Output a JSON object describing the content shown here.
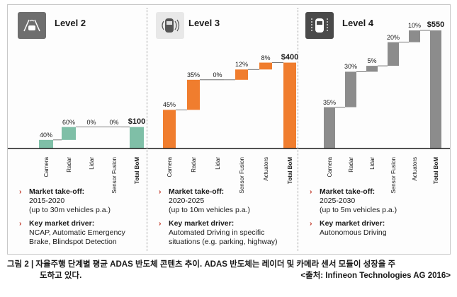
{
  "panels": [
    {
      "title": "Level 2",
      "icon": "car-lane-sensor-icon",
      "icon_bg": "#6e6e6e",
      "color": "#7fbfa7",
      "takeoff_heading": "Market take-off:",
      "takeoff_lines": [
        "2015-2020",
        "(up to 30m vehicles p.a.)"
      ],
      "driver_heading": "Key market driver:",
      "driver_lines": [
        "NCAP, Automatic Emergency",
        "Brake, Blindspot Detection"
      ]
    },
    {
      "title": "Level 3",
      "icon": "car-radar-icon",
      "icon_bg": "#e8e8e8",
      "color": "#f07d2e",
      "takeoff_heading": "Market take-off:",
      "takeoff_lines": [
        "2020-2025",
        "(up to 10m vehicles p.a.)"
      ],
      "driver_heading": "Key market driver:",
      "driver_lines": [
        "Automated Driving in specific",
        "situations (e.g. parking, highway)"
      ]
    },
    {
      "title": "Level 4",
      "icon": "car-autonomous-icon",
      "icon_bg": "#4a4a4a",
      "color": "#8c8c8c",
      "takeoff_heading": "Market take-off:",
      "takeoff_lines": [
        "2025-2030",
        "(up to 5m vehicles p.a.)"
      ],
      "driver_heading": "Key market driver:",
      "driver_lines": [
        "Autonomous Driving"
      ]
    }
  ],
  "chart_data": [
    {
      "type": "bar",
      "subtype": "waterfall",
      "title": "Level 2",
      "categories": [
        "Camera",
        "Radar",
        "Lidar",
        "Sensor Fusion",
        "Total BoM"
      ],
      "values": [
        40,
        60,
        0,
        0,
        100
      ],
      "labels": [
        "40%",
        "60%",
        "0%",
        "0%",
        "$100"
      ],
      "unit": "$",
      "ylim": [
        0,
        550
      ]
    },
    {
      "type": "bar",
      "subtype": "waterfall",
      "title": "Level 3",
      "categories": [
        "Camera",
        "Radar",
        "Lidar",
        "Sensor Fusion",
        "Actuators",
        "Total BoM"
      ],
      "values": [
        180,
        140,
        0,
        48,
        32,
        400
      ],
      "labels": [
        "45%",
        "35%",
        "0%",
        "12%",
        "8%",
        "$400"
      ],
      "unit": "$",
      "ylim": [
        0,
        550
      ]
    },
    {
      "type": "bar",
      "subtype": "waterfall",
      "title": "Level 4",
      "categories": [
        "Camera",
        "Radar",
        "Lidar",
        "Sensor Fusion",
        "Actuators",
        "Total BoM"
      ],
      "values": [
        192.5,
        165,
        27.5,
        110,
        55,
        550
      ],
      "labels": [
        "35%",
        "30%",
        "5%",
        "20%",
        "10%",
        "$550"
      ],
      "unit": "$",
      "ylim": [
        0,
        550
      ]
    }
  ],
  "caption": {
    "line1": "그림 2 | 자율주행 단계별 평균 ADAS 반도체 콘텐츠 추이. ADAS 반도체는 레이더 및 카메라 센서 모듈이 성장을 주",
    "line2": "도하고 있다.",
    "source": "<출처: Infineon Technologies AG 2016>"
  }
}
